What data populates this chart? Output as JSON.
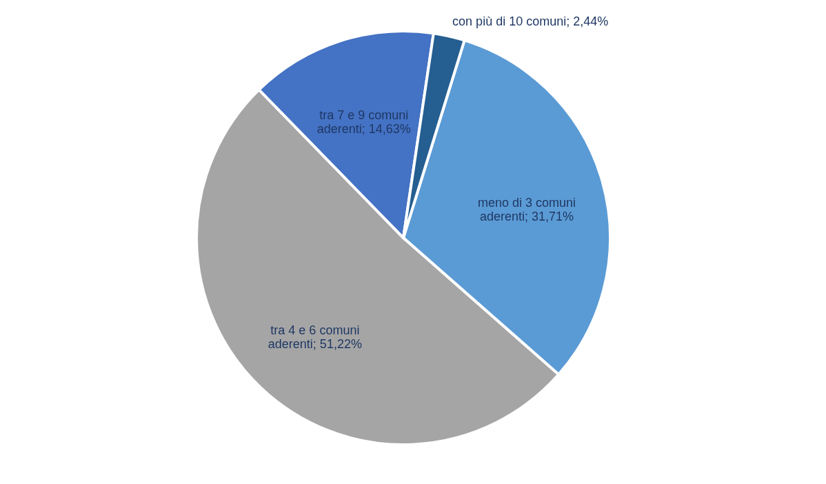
{
  "chart_data": {
    "type": "pie",
    "categories": [
      "meno di 3 comuni aderenti",
      "tra 4 e 6 comuni aderenti",
      "tra 7 e 9 comuni aderenti",
      "con più di 10 comuni"
    ],
    "values": [
      31.71,
      51.22,
      14.63,
      2.44
    ],
    "colors": [
      "#5b9bd5",
      "#a5a5a5",
      "#4472c4",
      "#255e91"
    ],
    "value_labels": [
      "31,71%",
      "51,22%",
      "14,63%",
      "2,44%"
    ],
    "legend": false
  }
}
